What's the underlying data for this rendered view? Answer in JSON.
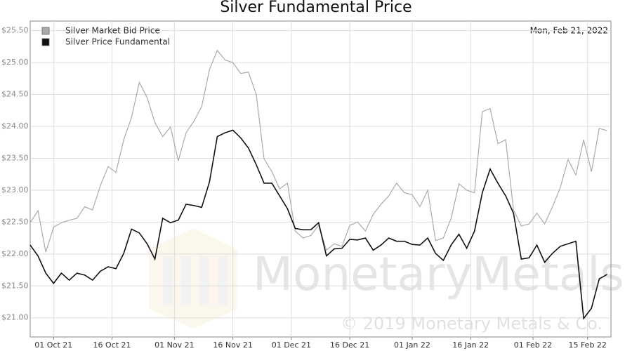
{
  "chart_data": {
    "type": "line",
    "title": "Silver Fundamental Price",
    "annotation": "Mon, Feb 21, 2022",
    "watermark": "MonetaryMetals",
    "copyright": "© 2019 Monetary Metals & Co.",
    "legend": "upper left",
    "grid": true,
    "x": [
      "2021-09-25",
      "2021-09-27",
      "2021-09-29",
      "2021-10-01",
      "2021-10-03",
      "2021-10-05",
      "2021-10-07",
      "2021-10-09",
      "2021-10-11",
      "2021-10-13",
      "2021-10-15",
      "2021-10-17",
      "2021-10-19",
      "2021-10-21",
      "2021-10-23",
      "2021-10-25",
      "2021-10-27",
      "2021-10-29",
      "2021-10-31",
      "2021-11-02",
      "2021-11-04",
      "2021-11-06",
      "2021-11-08",
      "2021-11-10",
      "2021-11-12",
      "2021-11-14",
      "2021-11-16",
      "2021-11-18",
      "2021-11-20",
      "2021-11-22",
      "2021-11-24",
      "2021-11-26",
      "2021-11-28",
      "2021-11-30",
      "2021-12-02",
      "2021-12-04",
      "2021-12-06",
      "2021-12-08",
      "2021-12-10",
      "2021-12-12",
      "2021-12-14",
      "2021-12-16",
      "2021-12-18",
      "2021-12-20",
      "2021-12-22",
      "2021-12-24",
      "2021-12-26",
      "2021-12-28",
      "2021-12-30",
      "2022-01-01",
      "2022-01-03",
      "2022-01-05",
      "2022-01-07",
      "2022-01-09",
      "2022-01-11",
      "2022-01-13",
      "2022-01-15",
      "2022-01-17",
      "2022-01-19",
      "2022-01-21",
      "2022-01-23",
      "2022-01-25",
      "2022-01-27",
      "2022-01-29",
      "2022-01-31",
      "2022-02-02",
      "2022-02-04",
      "2022-02-06",
      "2022-02-08",
      "2022-02-10",
      "2022-02-12",
      "2022-02-14",
      "2022-02-16",
      "2022-02-18",
      "2022-02-20"
    ],
    "series": [
      {
        "name": "Silver Market Bid Price",
        "color": "#aaaaaa",
        "values": [
          22.49,
          22.68,
          22.03,
          22.42,
          22.49,
          22.53,
          22.56,
          22.74,
          22.69,
          23.07,
          23.37,
          23.28,
          23.79,
          24.14,
          24.69,
          24.45,
          24.06,
          23.84,
          23.99,
          23.46,
          23.9,
          24.08,
          24.31,
          24.89,
          25.19,
          25.04,
          25.0,
          24.83,
          24.85,
          24.5,
          23.49,
          23.29,
          23.02,
          23.11,
          22.36,
          22.25,
          22.29,
          22.45,
          22.06,
          22.16,
          22.12,
          22.45,
          22.5,
          22.36,
          22.62,
          22.78,
          22.91,
          23.11,
          22.96,
          22.93,
          22.74,
          23.0,
          22.21,
          22.25,
          22.56,
          23.1,
          23.0,
          22.96,
          24.23,
          24.28,
          23.73,
          23.79,
          22.69,
          22.44,
          22.47,
          22.64,
          22.47,
          22.74,
          23.04,
          23.48,
          23.24,
          23.79,
          23.29,
          23.97,
          23.93
        ]
      },
      {
        "name": "Silver Price Fundamental",
        "color": "#111111",
        "values": [
          22.14,
          21.97,
          21.7,
          21.54,
          21.7,
          21.59,
          21.7,
          21.67,
          21.59,
          21.73,
          21.8,
          21.77,
          22.01,
          22.39,
          22.33,
          22.16,
          21.92,
          22.56,
          22.49,
          22.53,
          22.78,
          22.76,
          22.73,
          23.13,
          23.84,
          23.9,
          23.94,
          23.82,
          23.66,
          23.4,
          23.11,
          23.11,
          22.91,
          22.71,
          22.4,
          22.38,
          22.38,
          22.49,
          21.97,
          22.08,
          22.09,
          22.23,
          22.22,
          22.25,
          22.06,
          22.14,
          22.25,
          22.2,
          22.2,
          22.15,
          22.14,
          22.25,
          22.01,
          21.9,
          22.14,
          22.31,
          22.09,
          22.36,
          22.96,
          23.33,
          23.11,
          22.91,
          22.64,
          21.92,
          21.94,
          22.14,
          21.87,
          22.01,
          22.12,
          22.16,
          22.2,
          20.99,
          21.15,
          21.61,
          21.68
        ]
      }
    ],
    "xlim": [
      "2021-09-25",
      "2022-02-21"
    ],
    "xticks": [
      {
        "value": "2021-10-01",
        "label": "01 Oct 21"
      },
      {
        "value": "2021-10-16",
        "label": "16 Oct 21"
      },
      {
        "value": "2021-11-01",
        "label": "01 Nov 21"
      },
      {
        "value": "2021-11-16",
        "label": "16 Nov 21"
      },
      {
        "value": "2021-12-01",
        "label": "01 Dec 21"
      },
      {
        "value": "2021-12-16",
        "label": "16 Dec 21"
      },
      {
        "value": "2022-01-01",
        "label": "01 Jan 22"
      },
      {
        "value": "2022-01-16",
        "label": "16 Jan 22"
      },
      {
        "value": "2022-02-01",
        "label": "01 Feb 22"
      },
      {
        "value": "2022-02-15",
        "label": "15 Feb 22"
      }
    ],
    "ylim": [
      20.7,
      25.65
    ],
    "yticks": [
      {
        "value": 21.0,
        "label": "$21.00"
      },
      {
        "value": 21.5,
        "label": "$21.50"
      },
      {
        "value": 22.0,
        "label": "$22.00"
      },
      {
        "value": 22.5,
        "label": "$22.50"
      },
      {
        "value": 23.0,
        "label": "$23.00"
      },
      {
        "value": 23.5,
        "label": "$23.50"
      },
      {
        "value": 24.0,
        "label": "$24.00"
      },
      {
        "value": 24.5,
        "label": "$24.50"
      },
      {
        "value": 25.0,
        "label": "$25.00"
      },
      {
        "value": 25.5,
        "label": "$25.50"
      }
    ]
  }
}
